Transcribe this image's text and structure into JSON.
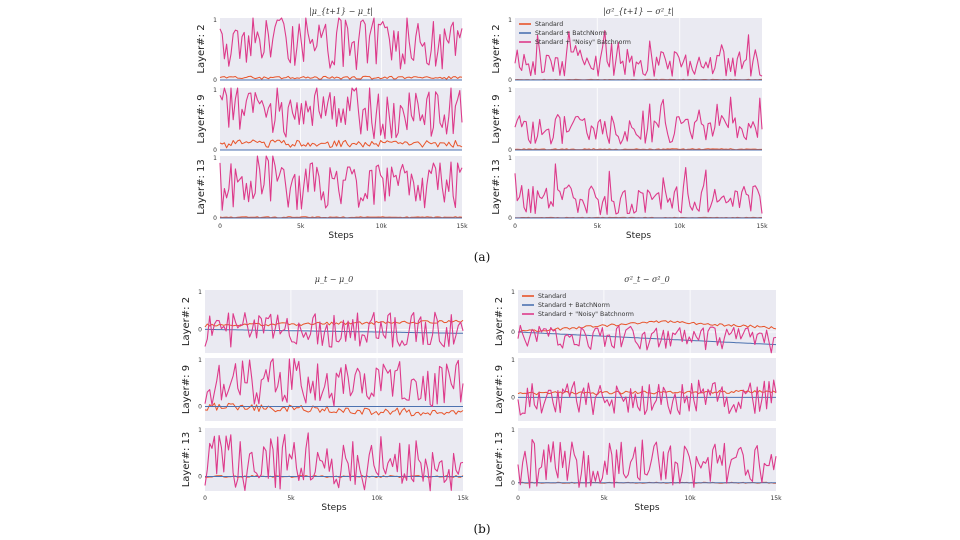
{
  "colors": {
    "standard": "#e8542a",
    "batchnorm": "#4c72b0",
    "noisy": "#dd3a8a",
    "panel_bg": "#eaeaf2"
  },
  "legend": [
    "Standard",
    "Standard + BatchNorm",
    "Standard + \"Noisy\" Batchnorm"
  ],
  "captions": {
    "a": "(a)",
    "b": "(b)"
  },
  "chart_data": [
    {
      "type": "line",
      "id": "a-left",
      "title": "|μ_{t+1} − μ_t|",
      "xlabel": "Steps",
      "xlim": [
        0,
        15000
      ],
      "xticks": [
        "0",
        "5k",
        "10k",
        "15k"
      ],
      "rows": [
        {
          "ylabel": "Layer#: 2",
          "ylim": [
            0,
            1
          ],
          "yticks": [
            "1",
            "0"
          ],
          "series": [
            {
              "name": "Standard",
              "level": 0.03,
              "noise": 0.03
            },
            {
              "name": "Standard + BatchNorm",
              "level": 0.0,
              "noise": 0.0
            },
            {
              "name": "Standard + \"Noisy\" Batchnorm",
              "level": 0.45,
              "noise": 0.5
            }
          ]
        },
        {
          "ylabel": "Layer#: 9",
          "ylim": [
            0,
            1
          ],
          "yticks": [
            "1",
            "0"
          ],
          "series": [
            {
              "name": "Standard",
              "level": 0.08,
              "noise": 0.08
            },
            {
              "name": "Standard + BatchNorm",
              "level": 0.0,
              "noise": 0.0
            },
            {
              "name": "Standard + \"Noisy\" Batchnorm",
              "level": 0.45,
              "noise": 0.5
            }
          ]
        },
        {
          "ylabel": "Layer#: 13",
          "ylim": [
            0,
            1
          ],
          "yticks": [
            "1",
            "0"
          ],
          "series": [
            {
              "name": "Standard",
              "level": 0.01,
              "noise": 0.01
            },
            {
              "name": "Standard + BatchNorm",
              "level": 0.0,
              "noise": 0.0
            },
            {
              "name": "Standard + \"Noisy\" Batchnorm",
              "level": 0.4,
              "noise": 0.5
            }
          ]
        }
      ]
    },
    {
      "type": "line",
      "id": "a-right",
      "title": "|σ²_{t+1} − σ²_t|",
      "xlabel": "Steps",
      "xlim": [
        0,
        15000
      ],
      "xticks": [
        "0",
        "5k",
        "10k",
        "15k"
      ],
      "legend": "top-left",
      "rows": [
        {
          "ylabel": "Layer#: 2",
          "ylim": [
            0,
            1
          ],
          "yticks": [
            "1",
            "0"
          ],
          "series": [
            {
              "name": "Standard",
              "level": 0.005,
              "noise": 0.005
            },
            {
              "name": "Standard + BatchNorm",
              "level": 0.0,
              "noise": 0.0
            },
            {
              "name": "Standard + \"Noisy\" Batchnorm",
              "level": 0.2,
              "noise": 0.25
            }
          ]
        },
        {
          "ylabel": "Layer#: 9",
          "ylim": [
            0,
            1
          ],
          "yticks": [
            "1",
            "0"
          ],
          "series": [
            {
              "name": "Standard",
              "level": 0.01,
              "noise": 0.01
            },
            {
              "name": "Standard + BatchNorm",
              "level": 0.0,
              "noise": 0.0
            },
            {
              "name": "Standard + \"Noisy\" Batchnorm",
              "level": 0.25,
              "noise": 0.3
            }
          ]
        },
        {
          "ylabel": "Layer#: 13",
          "ylim": [
            0,
            1
          ],
          "yticks": [
            "1",
            "0"
          ],
          "series": [
            {
              "name": "Standard",
              "level": 0.005,
              "noise": 0.005
            },
            {
              "name": "Standard + BatchNorm",
              "level": 0.0,
              "noise": 0.0
            },
            {
              "name": "Standard + \"Noisy\" Batchnorm",
              "level": 0.22,
              "noise": 0.3
            }
          ]
        }
      ]
    },
    {
      "type": "line",
      "id": "b-left",
      "title": "μ_t − μ_0",
      "xlabel": "Steps",
      "xlim": [
        0,
        15000
      ],
      "xticks": [
        "0",
        "5k",
        "10k",
        "15k"
      ],
      "rows": [
        {
          "ylabel": "Layer#: 2",
          "ylim": [
            -0.6,
            1
          ],
          "yticks": [
            "1",
            "0"
          ],
          "series": [
            {
              "name": "Standard",
              "start": 0.1,
              "end": 0.2,
              "noise": 0.04
            },
            {
              "name": "Standard + BatchNorm",
              "start": 0.0,
              "end": -0.1,
              "noise": 0.0
            },
            {
              "name": "Standard + \"Noisy\" Batchnorm",
              "start": 0.0,
              "end": 0.0,
              "noise": 0.45
            }
          ]
        },
        {
          "ylabel": "Layer#: 9",
          "ylim": [
            -0.3,
            1
          ],
          "yticks": [
            "1",
            "0"
          ],
          "series": [
            {
              "name": "Standard",
              "start": 0.0,
              "end": -0.15,
              "noise": 0.08
            },
            {
              "name": "Standard + BatchNorm",
              "start": 0.0,
              "end": 0.0,
              "noise": 0.0
            },
            {
              "name": "Standard + \"Noisy\" Batchnorm",
              "start": 0.5,
              "end": 0.5,
              "noise": 0.5
            }
          ]
        },
        {
          "ylabel": "Layer#: 13",
          "ylim": [
            -0.3,
            1
          ],
          "yticks": [
            "1",
            "0"
          ],
          "series": [
            {
              "name": "Standard",
              "start": 0.0,
              "end": 0.0,
              "noise": 0.02
            },
            {
              "name": "Standard + BatchNorm",
              "start": 0.0,
              "end": 0.0,
              "noise": 0.0
            },
            {
              "name": "Standard + \"Noisy\" Batchnorm",
              "start": 0.3,
              "end": 0.3,
              "noise": 0.6
            }
          ]
        }
      ]
    },
    {
      "type": "line",
      "id": "b-right",
      "title": "σ²_t − σ²_0",
      "xlabel": "Steps",
      "xlim": [
        0,
        15000
      ],
      "xticks": [
        "0",
        "5k",
        "10k",
        "15k"
      ],
      "legend": "top-left",
      "rows": [
        {
          "ylabel": "Layer#: 2",
          "ylim": [
            -0.5,
            1
          ],
          "yticks": [
            "1",
            "0"
          ],
          "series": [
            {
              "name": "Standard",
              "start": 0.0,
              "peak": 0.25,
              "end": 0.1,
              "noise": 0.03
            },
            {
              "name": "Standard + BatchNorm",
              "start": 0.0,
              "end": -0.3,
              "noise": 0.0
            },
            {
              "name": "Standard + \"Noisy\" Batchnorm",
              "start": -0.1,
              "end": -0.2,
              "noise": 0.3
            }
          ]
        },
        {
          "ylabel": "Layer#: 9",
          "ylim": [
            -0.6,
            1
          ],
          "yticks": [
            "1",
            "0"
          ],
          "series": [
            {
              "name": "Standard",
              "start": 0.1,
              "end": 0.15,
              "noise": 0.04
            },
            {
              "name": "Standard + BatchNorm",
              "start": 0.0,
              "end": 0.0,
              "noise": 0.0
            },
            {
              "name": "Standard + \"Noisy\" Batchnorm",
              "start": 0.0,
              "end": 0.0,
              "noise": 0.45
            }
          ]
        },
        {
          "ylabel": "Layer#: 13",
          "ylim": [
            -0.15,
            1
          ],
          "yticks": [
            "1",
            "0"
          ],
          "series": [
            {
              "name": "Standard",
              "start": 0.0,
              "end": 0.0,
              "noise": 0.01
            },
            {
              "name": "Standard + BatchNorm",
              "start": 0.0,
              "end": 0.0,
              "noise": 0.0
            },
            {
              "name": "Standard + \"Noisy\" Batchnorm",
              "start": 0.35,
              "end": 0.35,
              "noise": 0.45
            }
          ]
        }
      ]
    }
  ]
}
